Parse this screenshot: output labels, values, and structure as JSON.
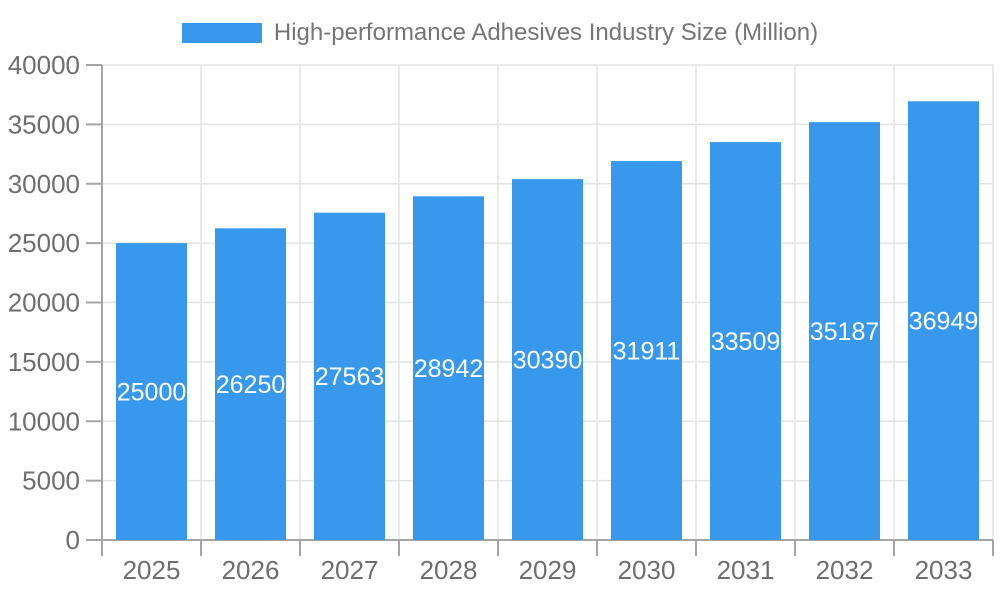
{
  "legend": {
    "label": "High-performance Adhesives Industry Size (Million)"
  },
  "chart_data": {
    "type": "bar",
    "title": "High-performance Adhesives Industry Size (Million)",
    "categories": [
      "2025",
      "2026",
      "2027",
      "2028",
      "2029",
      "2030",
      "2031",
      "2032",
      "2033"
    ],
    "series": [
      {
        "name": "High-performance Adhesives Industry Size (Million)",
        "values": [
          25000,
          26250,
          27563,
          28942,
          30390,
          31911,
          33509,
          35187,
          36949
        ]
      }
    ],
    "xlabel": "",
    "ylabel": "",
    "ylim": [
      0,
      40000
    ],
    "y_tick_step": 5000,
    "y_tick_labels": [
      "0",
      "5000",
      "10000",
      "15000",
      "20000",
      "25000",
      "30000",
      "35000",
      "40000"
    ],
    "grid": true,
    "legend_position": "top",
    "bar_labels_inside": true,
    "colors": {
      "bar": "#3899EC",
      "grid_line": "#E3E3E3",
      "axis_line": "#A5A5A5",
      "tick_label": "#6E6E6E",
      "legend_text": "#757575",
      "bar_label": "#FFFFFF",
      "background": "#FFFFFF"
    }
  }
}
